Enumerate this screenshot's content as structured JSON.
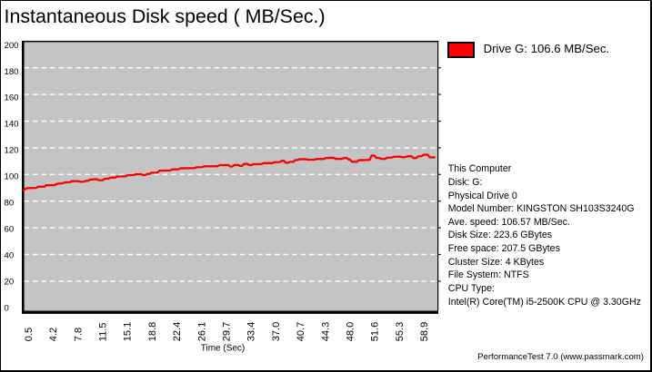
{
  "title": "Instantaneous Disk speed ( MB/Sec.)",
  "legend": {
    "series_label": "Drive G: 106.6 MB/Sec.",
    "swatch_color": "#ff0000"
  },
  "info_panel": {
    "lines": [
      "This Computer",
      "Disk: G:",
      "Physical Drive 0",
      "Model Number: KINGSTON SH103S3240G",
      "Ave. speed: 106.57 MB/Sec.",
      "Disk Size: 223.6 GBytes",
      "Free space: 207.5 GBytes",
      "Cluster Size: 4 KBytes",
      "File System: NTFS",
      "CPU Type:",
      "Intel(R) Core(TM) i5-2500K CPU @ 3.30GHz"
    ]
  },
  "footer": {
    "text": "PerformanceTest 7.0 (www.passmark.com)"
  },
  "chart_data": {
    "type": "line",
    "title": "Instantaneous Disk speed ( MB/Sec.)",
    "xlabel": "Time (Sec)",
    "ylabel": "",
    "xlim": [
      0,
      61.2
    ],
    "ylim": [
      0,
      200
    ],
    "x_tick_labels": [
      "0.5",
      "4.2",
      "7.8",
      "11.5",
      "15.1",
      "18.8",
      "22.4",
      "26.1",
      "29.7",
      "33.4",
      "37.0",
      "40.7",
      "44.3",
      "48.0",
      "51.6",
      "55.3",
      "58.9"
    ],
    "y_tick_labels": [
      "0",
      "20",
      "40",
      "60",
      "80",
      "100",
      "120",
      "140",
      "160",
      "180",
      "200"
    ],
    "grid": "horizontal white dashed",
    "plot_bg": "#c4c4c4",
    "gridline_color": "#ffffff",
    "legend_position": "outside top-right",
    "series": [
      {
        "name": "Drive G: 106.6 MB/Sec.",
        "color": "#fa0000",
        "points": [
          [
            0,
            88.1
          ],
          [
            0.4,
            89.6
          ],
          [
            0.7,
            89.8
          ],
          [
            1.9,
            89.9
          ],
          [
            2.1,
            90.8
          ],
          [
            3.1,
            90.9
          ],
          [
            3.3,
            91.9
          ],
          [
            4.6,
            92
          ],
          [
            4.9,
            93
          ],
          [
            5.8,
            93.4
          ],
          [
            6.1,
            94.1
          ],
          [
            6.9,
            94.2
          ],
          [
            7.1,
            95
          ],
          [
            8.1,
            95
          ],
          [
            8.4,
            94.5
          ],
          [
            8.9,
            94.6
          ],
          [
            9.2,
            95.2
          ],
          [
            9.5,
            95.2
          ],
          [
            9.8,
            96.1
          ],
          [
            10.8,
            96.5
          ],
          [
            11.1,
            95.7
          ],
          [
            11.7,
            95.7
          ],
          [
            12,
            96.8
          ],
          [
            12.5,
            96.8
          ],
          [
            12.8,
            97.6
          ],
          [
            13.5,
            97.6
          ],
          [
            13.8,
            98.4
          ],
          [
            15.1,
            98.6
          ],
          [
            15.4,
            99.5
          ],
          [
            16.3,
            99.6
          ],
          [
            16.6,
            100.2
          ],
          [
            17.4,
            100.2
          ],
          [
            17.7,
            99.5
          ],
          [
            18,
            99.6
          ],
          [
            18.3,
            100.4
          ],
          [
            18.6,
            100.4
          ],
          [
            18.9,
            101.3
          ],
          [
            19.8,
            101.4
          ],
          [
            20.1,
            102.8
          ],
          [
            21.7,
            103
          ],
          [
            22,
            103.8
          ],
          [
            22.9,
            103.9
          ],
          [
            23.2,
            104.6
          ],
          [
            25.3,
            104.8
          ],
          [
            25.6,
            105.4
          ],
          [
            26.4,
            105.5
          ],
          [
            26.7,
            106.1
          ],
          [
            28.7,
            106.2
          ],
          [
            29,
            107
          ],
          [
            30.3,
            107.1
          ],
          [
            30.6,
            105.9
          ],
          [
            30.9,
            106
          ],
          [
            31.2,
            107.1
          ],
          [
            31.7,
            107.2
          ],
          [
            32,
            106.4
          ],
          [
            32.3,
            106.4
          ],
          [
            32.6,
            107.9
          ],
          [
            33.1,
            108
          ],
          [
            33.4,
            107
          ],
          [
            33.7,
            107
          ],
          [
            34,
            107.7
          ],
          [
            35.2,
            107.8
          ],
          [
            35.5,
            108.5
          ],
          [
            36.8,
            108.5
          ],
          [
            37.1,
            109.2
          ],
          [
            37.9,
            109.3
          ],
          [
            38.2,
            110.3
          ],
          [
            38.5,
            110.4
          ],
          [
            38.8,
            108.7
          ],
          [
            39.1,
            108.7
          ],
          [
            39.4,
            109.5
          ],
          [
            39.9,
            109.5
          ],
          [
            40.2,
            110.8
          ],
          [
            40.5,
            110.8
          ],
          [
            40.8,
            111.4
          ],
          [
            41.8,
            111.5
          ],
          [
            42.1,
            111
          ],
          [
            43,
            111.1
          ],
          [
            43.3,
            111.6
          ],
          [
            44.4,
            111.6
          ],
          [
            44.7,
            112.3
          ],
          [
            45.2,
            112.5
          ],
          [
            45.9,
            112.5
          ],
          [
            46.2,
            111.7
          ],
          [
            47.1,
            111.7
          ],
          [
            47.4,
            112.3
          ],
          [
            47.8,
            112.4
          ],
          [
            48.1,
            111.3
          ],
          [
            48.3,
            111.2
          ],
          [
            48.6,
            109.5
          ],
          [
            49.3,
            109.5
          ],
          [
            49.6,
            110.7
          ],
          [
            50.2,
            110.8
          ],
          [
            51.2,
            110.9
          ],
          [
            51.5,
            114.1
          ],
          [
            51.9,
            114.2
          ],
          [
            52.2,
            112.5
          ],
          [
            52.6,
            112.4
          ],
          [
            52.9,
            111.7
          ],
          [
            53.5,
            111.7
          ],
          [
            53.8,
            112.6
          ],
          [
            54.5,
            112.7
          ],
          [
            54.8,
            113.3
          ],
          [
            55.7,
            113.4
          ],
          [
            56,
            113
          ],
          [
            56.5,
            113
          ],
          [
            56.8,
            113.6
          ],
          [
            57.4,
            113.7
          ],
          [
            57.7,
            112.3
          ],
          [
            58.1,
            112.3
          ],
          [
            58.4,
            113.6
          ],
          [
            58.9,
            113.7
          ],
          [
            59.2,
            114.8
          ],
          [
            59.8,
            114.9
          ],
          [
            60.1,
            112.8
          ],
          [
            60.8,
            112.9
          ]
        ]
      }
    ]
  }
}
